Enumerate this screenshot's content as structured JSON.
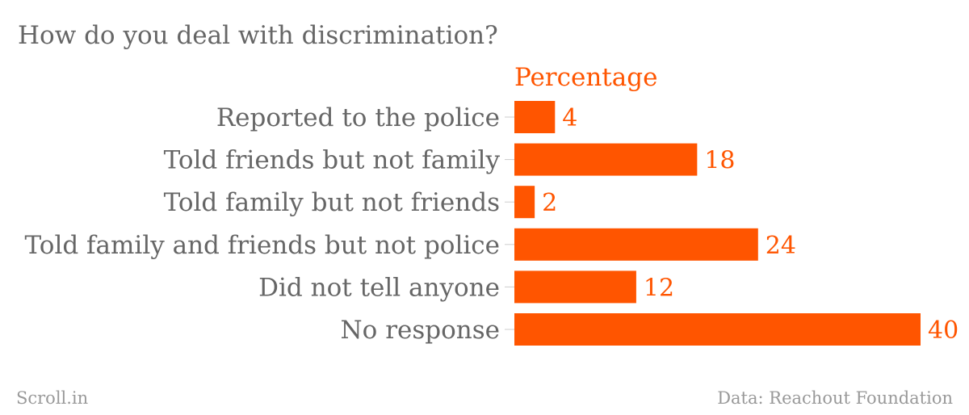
{
  "chart_data": {
    "type": "bar",
    "orientation": "horizontal",
    "title": "How do you deal with discrimination?",
    "series": [
      {
        "name": "Percentage",
        "values": [
          4,
          18,
          2,
          24,
          12,
          40
        ]
      }
    ],
    "categories": [
      "Reported to the police",
      "Told friends but not family",
      "Told family but not friends",
      "Told family and friends but not police",
      "Did not tell anyone",
      "No response"
    ],
    "xlim": [
      0,
      40
    ],
    "grid": false,
    "legend_position": "top"
  },
  "footer": {
    "source_left": "Scroll.in",
    "source_right": "Data: Reachout Foundation"
  },
  "colors": {
    "bar": "#ff5500",
    "value_label": "#ff5500",
    "legend_label": "#ff5500",
    "category_label": "#666666",
    "title": "#666666",
    "footer": "#999999",
    "tick": "#cccccc"
  }
}
